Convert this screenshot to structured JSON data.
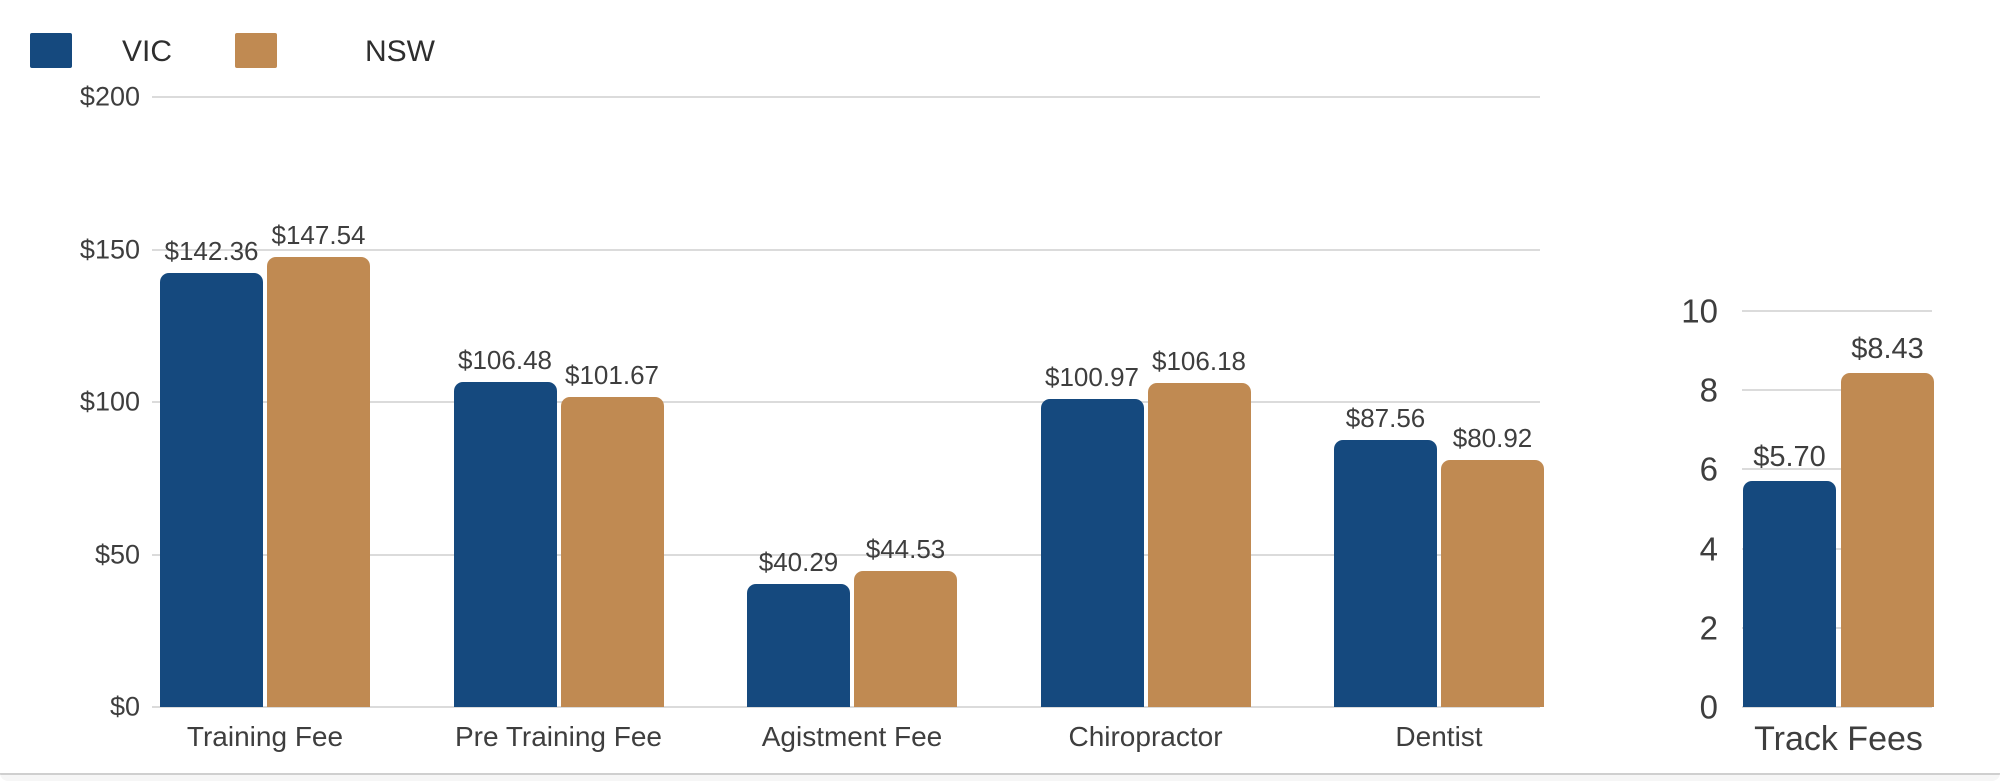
{
  "colors": {
    "series": {
      "VIC": "#15497E",
      "NSW": "#C08A52"
    },
    "grid": "#DBDBDB",
    "text": "#3E3E3E",
    "legend_text": "#2E2E2E",
    "card_edge_line": "#CFCFCF",
    "card_edge_fill": "#F6F6F6"
  },
  "legend": {
    "items": [
      {
        "label": "VIC",
        "color": "#15497E"
      },
      {
        "label": "NSW",
        "color": "#C08A52"
      }
    ]
  },
  "chart_data": [
    {
      "name": "fees-comparison",
      "type": "bar",
      "title": "",
      "categories": [
        "Training Fee",
        "Pre Training Fee",
        "Agistment Fee",
        "Chiropractor",
        "Dentist"
      ],
      "series": [
        {
          "name": "VIC",
          "values": [
            142.36,
            106.48,
            40.29,
            100.97,
            87.56
          ],
          "data_labels": [
            "$142.36",
            "$106.48",
            "$40.29",
            "$100.97",
            "$87.56"
          ]
        },
        {
          "name": "NSW",
          "values": [
            147.54,
            101.67,
            44.53,
            106.18,
            80.92
          ],
          "data_labels": [
            "$147.54",
            "$101.67",
            "$44.53",
            "$106.18",
            "$80.92"
          ]
        }
      ],
      "xlabel": "",
      "ylabel": "",
      "ylim": [
        0,
        200
      ],
      "yticks": [
        {
          "value": 0,
          "label": "$0"
        },
        {
          "value": 50,
          "label": "$50"
        },
        {
          "value": 100,
          "label": "$100"
        },
        {
          "value": 150,
          "label": "$150"
        },
        {
          "value": 200,
          "label": "$200"
        }
      ],
      "grid": true,
      "legend_position": "top-left"
    },
    {
      "name": "track-fees",
      "type": "bar",
      "title": "",
      "categories": [
        "Track Fees"
      ],
      "series": [
        {
          "name": "VIC",
          "values": [
            5.7
          ],
          "data_labels": [
            "$5.70"
          ]
        },
        {
          "name": "NSW",
          "values": [
            8.43
          ],
          "data_labels": [
            "$8.43"
          ]
        }
      ],
      "xlabel": "",
      "ylabel": "",
      "ylim": [
        0,
        10
      ],
      "yticks": [
        {
          "value": 0,
          "label": "0"
        },
        {
          "value": 2,
          "label": "2"
        },
        {
          "value": 4,
          "label": "4"
        },
        {
          "value": 6,
          "label": "6"
        },
        {
          "value": 8,
          "label": "8"
        },
        {
          "value": 10,
          "label": "10"
        }
      ],
      "grid": true,
      "legend_position": "none"
    }
  ]
}
